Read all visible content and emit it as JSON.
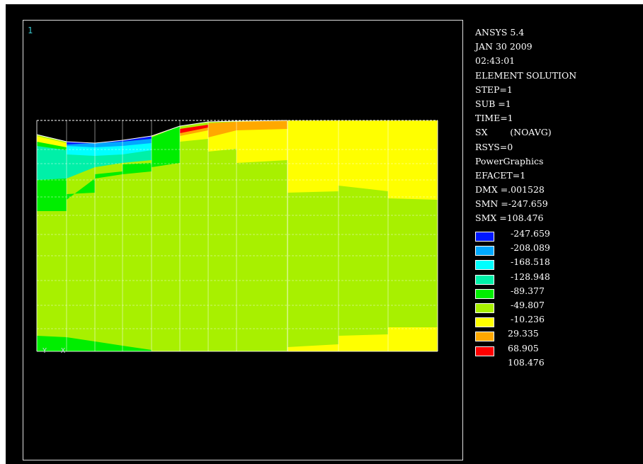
{
  "window_number": "1",
  "info_lines": [
    "ANSYS 5.4",
    "JAN 30 2009",
    "02:43:01",
    "ELEMENT SOLUTION",
    "STEP=1",
    "SUB =1",
    "TIME=1",
    "SX        (NOAVG)",
    "RSYS=0",
    "PowerGraphics",
    "EFACET=1",
    "DMX =.001528",
    "SMN =-247.659",
    "SMX =108.476"
  ],
  "legend": [
    {
      "label": " -247.659",
      "color": "#0018ff"
    },
    {
      "label": " -208.089",
      "color": "#00a8ff"
    },
    {
      "label": " -168.518",
      "color": "#00ffff"
    },
    {
      "label": " -128.948",
      "color": "#00f0a8"
    },
    {
      "label": " -89.377",
      "color": "#00ee00"
    },
    {
      "label": " -49.807",
      "color": "#a8f000"
    },
    {
      "label": " -10.236",
      "color": "#ffff00"
    },
    {
      "label": "29.335",
      "color": "#ffa800"
    },
    {
      "label": "68.905",
      "color": "#ff0000"
    },
    {
      "label": "108.476",
      "color": ""
    }
  ],
  "axis_labels": {
    "y": "Y",
    "x": "X"
  }
}
